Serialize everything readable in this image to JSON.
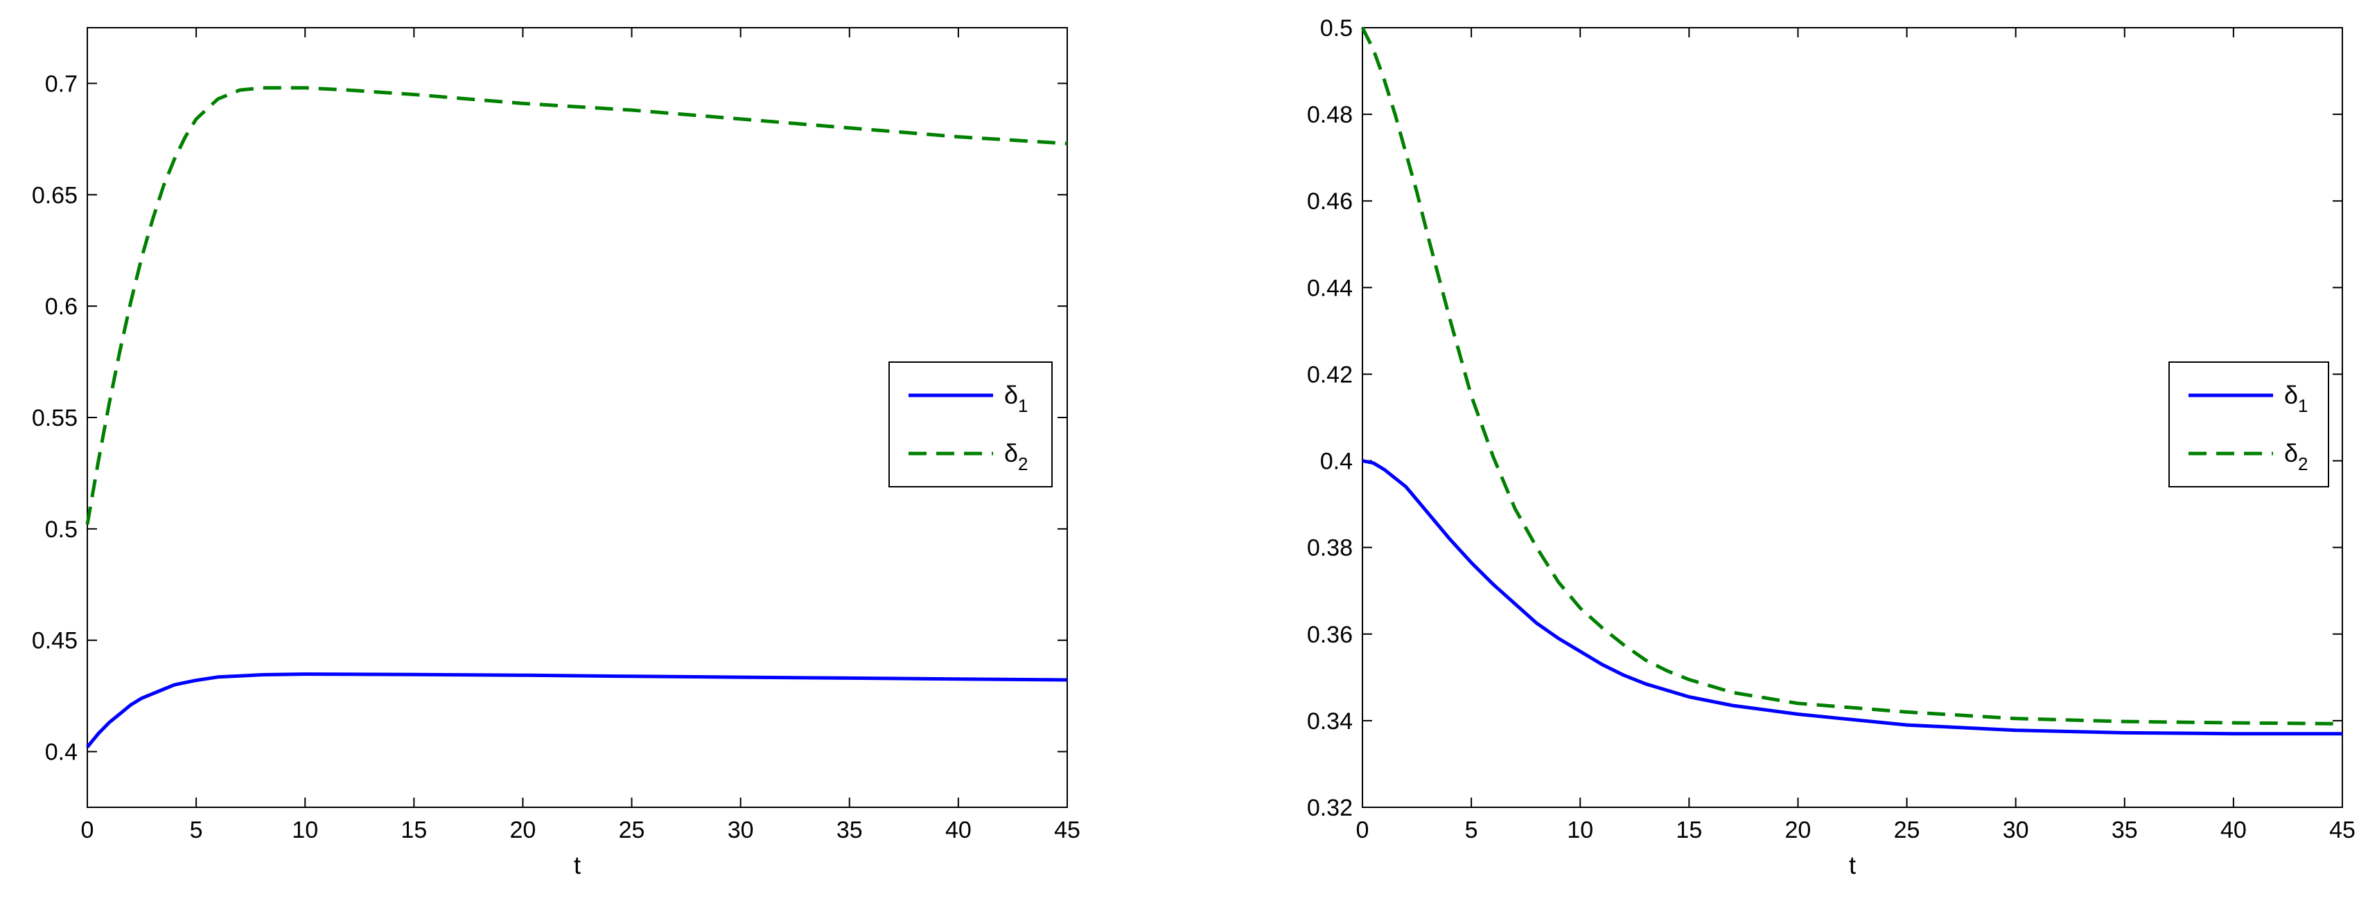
{
  "chart_data": [
    {
      "type": "line",
      "xlabel": "t",
      "ylabel": "",
      "title": "",
      "xlim": [
        0,
        45
      ],
      "ylim": [
        0.375,
        0.725
      ],
      "xticks": [
        "0",
        "5",
        "10",
        "15",
        "20",
        "25",
        "30",
        "35",
        "40",
        "45"
      ],
      "yticks": [
        "0.4",
        "0.45",
        "0.5",
        "0.55",
        "0.6",
        "0.65",
        "0.7"
      ],
      "legend": {
        "placement": "right",
        "entries": [
          {
            "base": "δ",
            "sub": "1",
            "color": "#0000ff",
            "dash": "solid"
          },
          {
            "base": "δ",
            "sub": "2",
            "color": "#008000",
            "dash": "dashed"
          }
        ]
      },
      "series": [
        {
          "name": "δ1",
          "color": "#0000ff",
          "style": "solid",
          "x": [
            0,
            0.5,
            1,
            1.5,
            2,
            2.5,
            3,
            3.5,
            4,
            4.5,
            5,
            6,
            7,
            8,
            10,
            15,
            20,
            25,
            30,
            35,
            40,
            45
          ],
          "y": [
            0.402,
            0.408,
            0.413,
            0.417,
            0.421,
            0.424,
            0.426,
            0.428,
            0.43,
            0.431,
            0.432,
            0.4335,
            0.434,
            0.4345,
            0.4348,
            0.4346,
            0.4343,
            0.4338,
            0.4334,
            0.433,
            0.4326,
            0.4322
          ]
        },
        {
          "name": "δ2",
          "color": "#008000",
          "style": "dashed",
          "x": [
            0,
            0.5,
            1,
            1.5,
            2,
            2.5,
            3,
            3.5,
            4,
            4.5,
            5,
            6,
            7,
            8,
            9,
            10,
            12,
            15,
            20,
            25,
            30,
            35,
            40,
            45
          ],
          "y": [
            0.502,
            0.53,
            0.556,
            0.58,
            0.602,
            0.622,
            0.639,
            0.654,
            0.666,
            0.676,
            0.684,
            0.693,
            0.697,
            0.698,
            0.698,
            0.698,
            0.697,
            0.695,
            0.691,
            0.688,
            0.684,
            0.68,
            0.676,
            0.673
          ]
        }
      ]
    },
    {
      "type": "line",
      "xlabel": "t",
      "ylabel": "",
      "title": "",
      "xlim": [
        0,
        45
      ],
      "ylim": [
        0.32,
        0.5
      ],
      "xticks": [
        "0",
        "5",
        "10",
        "15",
        "20",
        "25",
        "30",
        "35",
        "40",
        "45"
      ],
      "yticks": [
        "0.32",
        "0.34",
        "0.36",
        "0.38",
        "0.4",
        "0.42",
        "0.44",
        "0.46",
        "0.48",
        "0.5"
      ],
      "legend": {
        "placement": "right",
        "entries": [
          {
            "base": "δ",
            "sub": "1",
            "color": "#0000ff",
            "dash": "solid"
          },
          {
            "base": "δ",
            "sub": "2",
            "color": "#008000",
            "dash": "dashed"
          }
        ]
      },
      "series": [
        {
          "name": "δ1",
          "color": "#0000ff",
          "style": "solid",
          "x": [
            0,
            0.5,
            1,
            1.5,
            2,
            3,
            4,
            5,
            6,
            7,
            8,
            9,
            10,
            11,
            12,
            13,
            14,
            15,
            17,
            20,
            22,
            25,
            30,
            35,
            40,
            45
          ],
          "y": [
            0.4,
            0.3995,
            0.398,
            0.396,
            0.394,
            0.388,
            0.382,
            0.3765,
            0.3715,
            0.367,
            0.3625,
            0.359,
            0.356,
            0.353,
            0.3505,
            0.3485,
            0.347,
            0.3455,
            0.3435,
            0.3415,
            0.3405,
            0.339,
            0.3378,
            0.3372,
            0.337,
            0.337
          ]
        },
        {
          "name": "δ2",
          "color": "#008000",
          "style": "dashed",
          "x": [
            0,
            0.5,
            1,
            1.5,
            2,
            2.5,
            3,
            4,
            5,
            6,
            7,
            8,
            9,
            10,
            11,
            12,
            13,
            14,
            15,
            17,
            20,
            25,
            30,
            35,
            40,
            45
          ],
          "y": [
            0.5,
            0.495,
            0.488,
            0.48,
            0.471,
            0.462,
            0.452,
            0.433,
            0.415,
            0.401,
            0.389,
            0.38,
            0.372,
            0.366,
            0.3615,
            0.3575,
            0.354,
            0.3515,
            0.3495,
            0.3465,
            0.344,
            0.342,
            0.3405,
            0.3398,
            0.3395,
            0.3393
          ]
        }
      ]
    }
  ]
}
